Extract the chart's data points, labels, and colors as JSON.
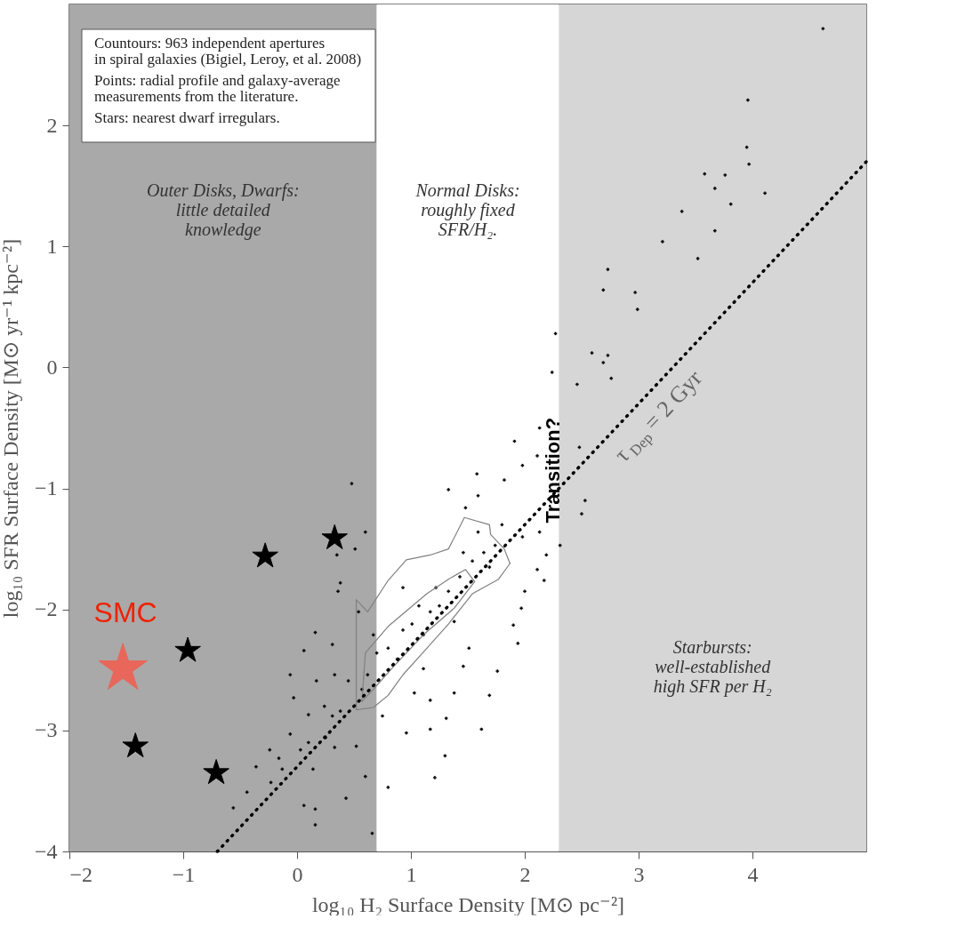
{
  "chart_data": {
    "type": "scatter",
    "xlabel": "log₁₀ H₂ Surface Density [M⊙ pc⁻²]",
    "ylabel": "log₁₀ SFR Surface Density [M⊙ yr⁻¹ kpc⁻²]",
    "xlim": [
      -2,
      5
    ],
    "ylim": [
      -4,
      3
    ],
    "xticks": [
      -2,
      -1,
      0,
      1,
      2,
      3,
      4
    ],
    "yticks": [
      -4,
      -3,
      -2,
      -1,
      0,
      1,
      2
    ],
    "grid": false,
    "bands": [
      {
        "axis": "x",
        "from": -2,
        "to": 0.7,
        "color": "#a9a9a9",
        "label": "Outer Disks, Dwarfs:\nlittle detailed\nknowledge"
      },
      {
        "axis": "x",
        "from": 0.7,
        "to": 2.3,
        "color": "#ffffff",
        "label": "Normal Disks:\nroughly fixed\nSFR/H₂."
      },
      {
        "axis": "x",
        "from": 2.3,
        "to": 5,
        "color": "#d6d6d6",
        "label": "Starbursts:\nwell-established\nhigh SFR per H₂"
      }
    ],
    "annotations": [
      "Countours: 963 independent apertures\n in spiral galaxies (Bigiel, Leroy, et al. 2008)",
      "Points: radial profile and galaxy-average\n measurements from the literature.",
      "Stars: nearest dwarf irregulars.",
      "Transition?"
    ],
    "series": [
      {
        "marker": "cross",
        "color": "#000000",
        "x": [
          4.62,
          3.96,
          3.95,
          3.97,
          3.58,
          3.76,
          3.67,
          4.11,
          3.81,
          3.38,
          3.67,
          3.21,
          3.52,
          2.73,
          2.69,
          2.97,
          2.99,
          2.27,
          2.59,
          2.73,
          2.69,
          2.24,
          2.46,
          2.76,
          0.48,
          0.6,
          0.51,
          0.35,
          0.38,
          0.36,
          0.54,
          0.16,
          0.06,
          0.31,
          -0.06,
          0.45,
          0.17,
          0.33,
          -0.03,
          0.24,
          0.38,
          0.1,
          0.31,
          -0.06,
          0.1,
          0.25,
          0.03,
          0.33,
          0.52,
          -0.16,
          -0.13,
          0.14,
          0.6,
          -0.23,
          0.06,
          0.16,
          0.43,
          0.16,
          0.66,
          -0.44,
          -0.36,
          -0.56,
          -0.24,
          0.75,
          0.96,
          1.17,
          1.3,
          1.21,
          0.8,
          1.31,
          1.62,
          1.69,
          1.38,
          1.03,
          1.17,
          1.76,
          1.46,
          1.11,
          1.94,
          1.9,
          1.51,
          1.97,
          2.0,
          2.17,
          2.11,
          2.19,
          2.13,
          1.98,
          1.59,
          1.58,
          1.33,
          1.48,
          1.82,
          1.91,
          1.98,
          2.11,
          2.13,
          2.31,
          2.5,
          2.53,
          2.48,
          0.93,
          1.07,
          1.17,
          0.67,
          0.8,
          0.93,
          0.88,
          0.62,
          0.7,
          0.57,
          1.33,
          1.43,
          1.54,
          1.64,
          1.74,
          1.8,
          1.59,
          1.25,
          1.01,
          1.11,
          1.38,
          1.22,
          1.69,
          1.46
        ],
        "values": [
          2.8,
          2.21,
          1.82,
          1.68,
          1.6,
          1.59,
          1.48,
          1.44,
          1.35,
          1.29,
          1.13,
          1.04,
          0.9,
          0.81,
          0.64,
          0.62,
          0.48,
          0.28,
          0.12,
          0.1,
          0.04,
          -0.04,
          -0.14,
          -0.09,
          -0.96,
          -1.36,
          -1.5,
          -1.55,
          -1.78,
          -1.85,
          -2.02,
          -2.19,
          -2.34,
          -2.29,
          -2.54,
          -2.59,
          -2.59,
          -2.54,
          -2.73,
          -2.8,
          -2.84,
          -2.87,
          -2.88,
          -3.03,
          -3.1,
          -3.06,
          -3.16,
          -3.14,
          -3.13,
          -3.23,
          -3.32,
          -3.32,
          -3.38,
          -3.43,
          -3.62,
          -3.65,
          -3.56,
          -3.78,
          -3.85,
          -3.51,
          -3.3,
          -3.64,
          -3.16,
          -2.88,
          -3.02,
          -2.99,
          -3.21,
          -3.39,
          -3.47,
          -2.9,
          -2.99,
          -2.71,
          -2.69,
          -2.69,
          -2.75,
          -2.51,
          -2.47,
          -2.49,
          -2.28,
          -2.13,
          -2.32,
          -1.99,
          -1.85,
          -1.76,
          -1.67,
          -1.55,
          -1.36,
          -1.4,
          -1.06,
          -0.88,
          -1.01,
          -1.16,
          -0.93,
          -0.61,
          -0.81,
          -0.73,
          -0.5,
          -1.47,
          -1.21,
          -1.1,
          -0.66,
          -1.82,
          -1.97,
          -2.02,
          -2.21,
          -2.32,
          -2.17,
          -2.41,
          -2.54,
          -2.36,
          -2.66,
          -1.85,
          -1.73,
          -1.6,
          -1.53,
          -1.47,
          -1.3,
          -1.36,
          -1.97,
          -2.12,
          -2.21,
          -2.1,
          -1.82,
          -1.65,
          -1.53
        ]
      },
      {
        "type": "line",
        "color": "#808080",
        "x": [
          0.52,
          0.62,
          0.8,
          0.96,
          1.17,
          1.33,
          1.47,
          1.69,
          1.7,
          1.82,
          1.87
        ],
        "values": [
          -1.92,
          -2.02,
          -1.76,
          -1.59,
          -1.55,
          -1.5,
          -1.24,
          -1.3,
          -1.38,
          -1.5,
          -1.62
        ]
      },
      {
        "type": "line",
        "color": "#808080",
        "x": [
          0.52,
          0.52,
          0.67,
          0.8,
          0.93,
          1.14,
          1.33,
          1.54,
          1.77,
          1.87
        ],
        "values": [
          -1.92,
          -2.83,
          -2.81,
          -2.71,
          -2.54,
          -2.32,
          -2.12,
          -1.87,
          -1.75,
          -1.62
        ]
      },
      {
        "type": "line",
        "color": "#808080",
        "x": [
          0.57,
          0.6,
          0.8,
          1.14,
          1.33,
          1.48,
          1.56
        ],
        "values": [
          -2.76,
          -2.36,
          -2.14,
          -1.87,
          -1.75,
          -1.67,
          -1.77
        ]
      },
      {
        "type": "line",
        "color": "#808080",
        "x": [
          0.57,
          0.67,
          0.85,
          1.11,
          1.38,
          1.56
        ],
        "values": [
          -2.76,
          -2.66,
          -2.47,
          -2.21,
          -1.99,
          -1.77
        ]
      },
      {
        "marker": "star",
        "color": "#000000",
        "x": [
          -1.42,
          -0.71,
          -0.96,
          -0.28,
          0.33
        ],
        "values": [
          -3.13,
          -3.35,
          -2.34,
          -1.56,
          -1.41
        ]
      },
      {
        "marker": "star",
        "color": "#e8675a",
        "name": "SMC",
        "x": [
          -1.53
        ],
        "values": [
          -2.49
        ]
      },
      {
        "type": "line",
        "line_style": "dotted",
        "color": "#000000",
        "name": "τ$_{Dep}$ = 2 Gyr",
        "x": [
          -0.7,
          5
        ],
        "values": [
          -4,
          1.7
        ]
      }
    ]
  }
}
